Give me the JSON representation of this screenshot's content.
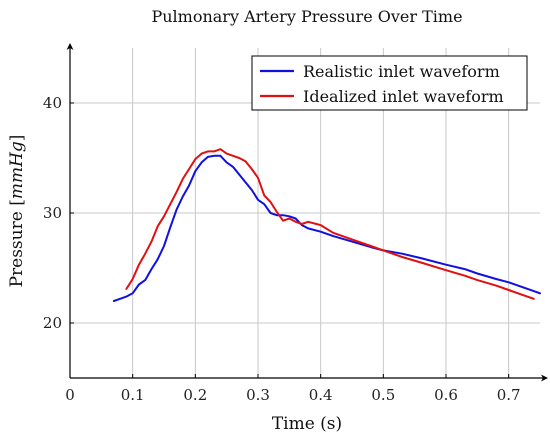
{
  "chart_data": {
    "type": "line",
    "title": "Pulmonary Artery Pressure Over Time",
    "xlabel": "Time (s)",
    "ylabel_prefix": "Pressure [",
    "ylabel_unit": "mmHg",
    "ylabel_suffix": "]",
    "xlim": [
      0,
      0.75
    ],
    "ylim": [
      15,
      45
    ],
    "xticks": [
      0,
      0.1,
      0.2,
      0.3,
      0.4,
      0.5,
      0.6,
      0.7
    ],
    "xtick_labels": [
      "0",
      "0.1",
      "0.2",
      "0.3",
      "0.4",
      "0.5",
      "0.6",
      "0.7"
    ],
    "yticks": [
      20,
      30,
      40
    ],
    "ytick_labels": [
      "20",
      "30",
      "40"
    ],
    "grid": true,
    "legend_position": "top-right",
    "series": [
      {
        "name": "Realistic inlet waveform",
        "color": "#1010e0",
        "x": [
          0.07,
          0.08,
          0.09,
          0.1,
          0.11,
          0.12,
          0.13,
          0.14,
          0.15,
          0.16,
          0.17,
          0.18,
          0.19,
          0.2,
          0.21,
          0.22,
          0.23,
          0.24,
          0.25,
          0.26,
          0.27,
          0.28,
          0.29,
          0.3,
          0.31,
          0.32,
          0.33,
          0.34,
          0.35,
          0.36,
          0.37,
          0.38,
          0.4,
          0.42,
          0.45,
          0.48,
          0.5,
          0.53,
          0.56,
          0.6,
          0.63,
          0.65,
          0.68,
          0.7,
          0.72,
          0.74,
          0.75
        ],
        "y": [
          22.0,
          22.2,
          22.4,
          22.7,
          23.5,
          23.9,
          24.9,
          25.8,
          27.0,
          28.7,
          30.3,
          31.5,
          32.5,
          33.8,
          34.6,
          35.1,
          35.2,
          35.2,
          34.6,
          34.2,
          33.5,
          32.8,
          32.1,
          31.2,
          30.8,
          30.0,
          29.8,
          29.8,
          29.7,
          29.5,
          28.9,
          28.6,
          28.3,
          27.9,
          27.4,
          26.9,
          26.6,
          26.3,
          25.9,
          25.3,
          24.9,
          24.5,
          24.0,
          23.7,
          23.3,
          22.9,
          22.7
        ]
      },
      {
        "name": "Idealized inlet waveform",
        "color": "#e01010",
        "x": [
          0.09,
          0.1,
          0.11,
          0.12,
          0.13,
          0.14,
          0.15,
          0.16,
          0.17,
          0.18,
          0.19,
          0.2,
          0.21,
          0.22,
          0.23,
          0.24,
          0.25,
          0.26,
          0.27,
          0.28,
          0.29,
          0.3,
          0.31,
          0.32,
          0.33,
          0.34,
          0.35,
          0.36,
          0.37,
          0.38,
          0.4,
          0.42,
          0.45,
          0.48,
          0.5,
          0.53,
          0.56,
          0.6,
          0.63,
          0.65,
          0.68,
          0.7,
          0.72,
          0.74
        ],
        "y": [
          23.1,
          24.0,
          25.3,
          26.3,
          27.4,
          28.8,
          29.7,
          30.8,
          31.9,
          33.1,
          34.0,
          34.9,
          35.4,
          35.6,
          35.6,
          35.8,
          35.4,
          35.2,
          35.0,
          34.7,
          34.0,
          33.2,
          31.6,
          31.0,
          30.1,
          29.3,
          29.5,
          29.2,
          29.0,
          29.2,
          28.9,
          28.2,
          27.6,
          27.0,
          26.6,
          26.0,
          25.5,
          24.8,
          24.3,
          23.9,
          23.4,
          23.0,
          22.6,
          22.2
        ]
      }
    ]
  }
}
